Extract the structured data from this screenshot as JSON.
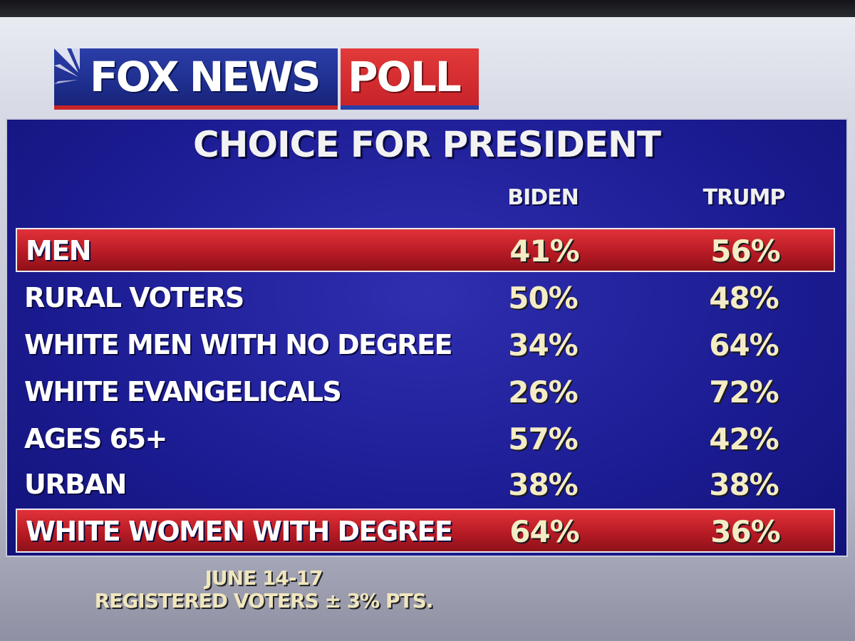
{
  "logo": {
    "fox_news": "FOX NEWS",
    "poll": "POLL"
  },
  "panel": {
    "title": "CHOICE FOR PRESIDENT",
    "columns": [
      "BIDEN",
      "TRUMP"
    ],
    "rows": [
      {
        "label": "MEN",
        "biden": "41%",
        "trump": "56%",
        "highlighted": true
      },
      {
        "label": "RURAL VOTERS",
        "biden": "50%",
        "trump": "48%",
        "highlighted": false
      },
      {
        "label": "WHITE MEN WITH NO DEGREE",
        "biden": "34%",
        "trump": "64%",
        "highlighted": false
      },
      {
        "label": "WHITE EVANGELICALS",
        "biden": "26%",
        "trump": "72%",
        "highlighted": false
      },
      {
        "label": "AGES 65+",
        "biden": "57%",
        "trump": "42%",
        "highlighted": false
      },
      {
        "label": "URBAN",
        "biden": "38%",
        "trump": "38%",
        "highlighted": false
      },
      {
        "label": "WHITE WOMEN WITH DEGREE",
        "biden": "64%",
        "trump": "36%",
        "highlighted": true
      }
    ]
  },
  "footer": {
    "dates": "JUNE 14-17",
    "note": "REGISTERED VOTERS ± 3% PTS."
  },
  "colors": {
    "panel_blue": "#1d1d95",
    "highlight_red": "#b81b25",
    "value_cream": "#f4ecc4",
    "logo_blue": "#1f2f8f",
    "logo_red": "#c7232a"
  }
}
